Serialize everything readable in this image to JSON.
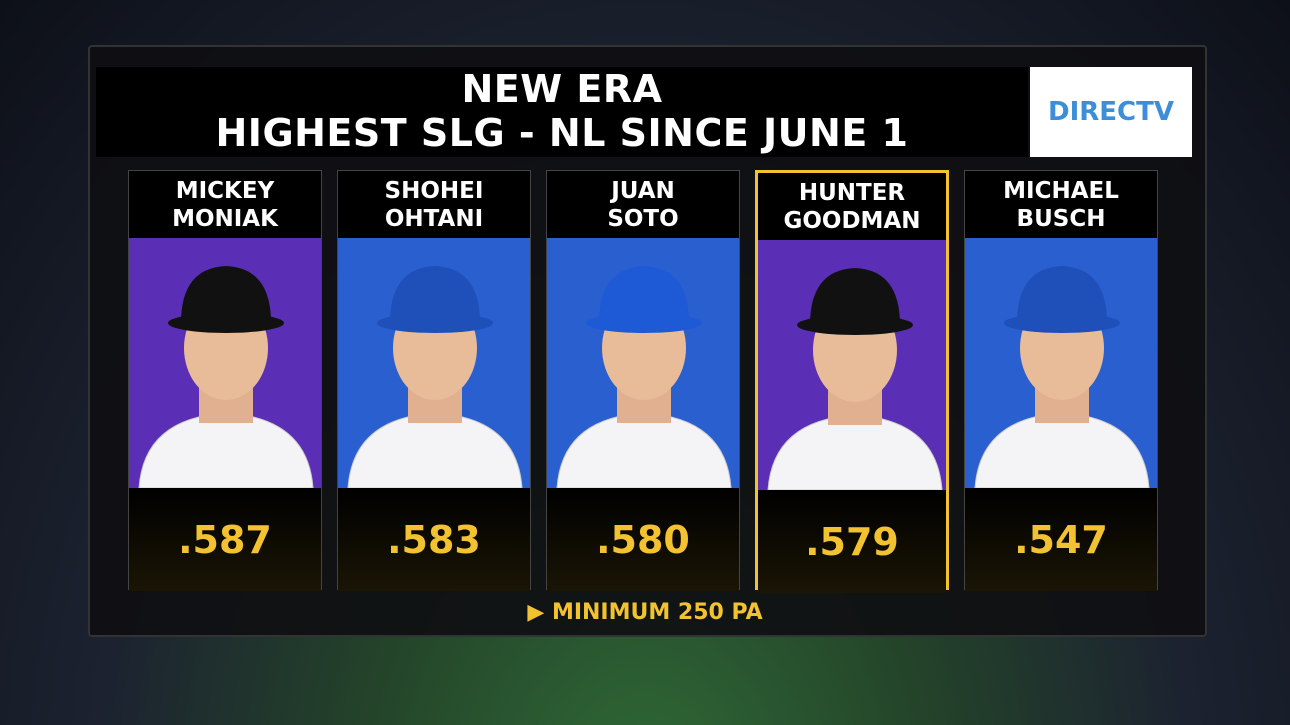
{
  "header": {
    "title": [
      "NEW ERA",
      "HIGHEST SLG - NL SINCE JUNE 1"
    ],
    "logo": "DIRECTV"
  },
  "players": [
    {
      "first": "MICKEY",
      "last": "MONIAK",
      "value": ".587",
      "color": "#5a2fb5",
      "cap": "#111111",
      "highlighted": false
    },
    {
      "first": "SHOHEI",
      "last": "OHTANI",
      "value": ".583",
      "color": "#2a5fd0",
      "cap": "#1f4fb8",
      "highlighted": false
    },
    {
      "first": "JUAN",
      "last": "SOTO",
      "value": ".580",
      "color": "#2a5fd0",
      "cap": "#1f5ad6",
      "highlighted": false
    },
    {
      "first": "HUNTER",
      "last": "GOODMAN",
      "value": ".579",
      "color": "#5a2fb5",
      "cap": "#111111",
      "highlighted": true
    },
    {
      "first": "MICHAEL",
      "last": "BUSCH",
      "value": ".547",
      "color": "#2a5fd0",
      "cap": "#1f4fb8",
      "highlighted": false
    }
  ],
  "footer": "MINIMUM 250 PA"
}
